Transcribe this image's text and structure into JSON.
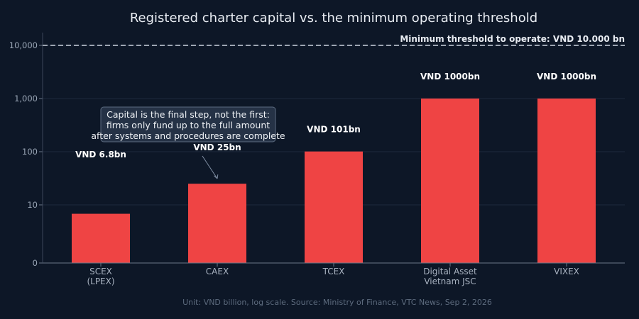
{
  "chart_data": {
    "type": "bar",
    "title": "Registered charter capital vs. the minimum operating threshold",
    "categories": [
      [
        "SCEX",
        "(LPEX)"
      ],
      [
        "CAEX"
      ],
      [
        "TCEX"
      ],
      [
        "Digital Asset",
        "Vietnam JSC"
      ],
      [
        "VIXEX"
      ]
    ],
    "values": [
      6.8,
      25,
      101,
      1000,
      1000
    ],
    "data_labels": [
      "VND 6.8bn",
      "VND 25bn",
      "VND 101bn",
      "VND 1000bn",
      "VND 1000bn"
    ],
    "y_scale": "log",
    "ylim": [
      0,
      10000
    ],
    "y_ticks": [
      {
        "value": 0,
        "label": "0"
      },
      {
        "value": 10,
        "label": "10"
      },
      {
        "value": 100,
        "label": "100"
      },
      {
        "value": 1000,
        "label": "1,000"
      },
      {
        "value": 10000,
        "label": "10,000"
      }
    ],
    "reference_line": {
      "value": 10000,
      "label": "Minimum threshold to operate: VND 10.000 bn"
    },
    "annotation": {
      "category_index": 1,
      "lines": [
        "Capital is the final step, not the first:",
        "firms only fund up to the full amount",
        "after systems and procedures are complete"
      ]
    },
    "grid": true,
    "bar_color": "#ef4444",
    "footnote": "Unit: VND billion, log scale. Source: Ministry of Finance, VTC News, Sep 2, 2026"
  }
}
